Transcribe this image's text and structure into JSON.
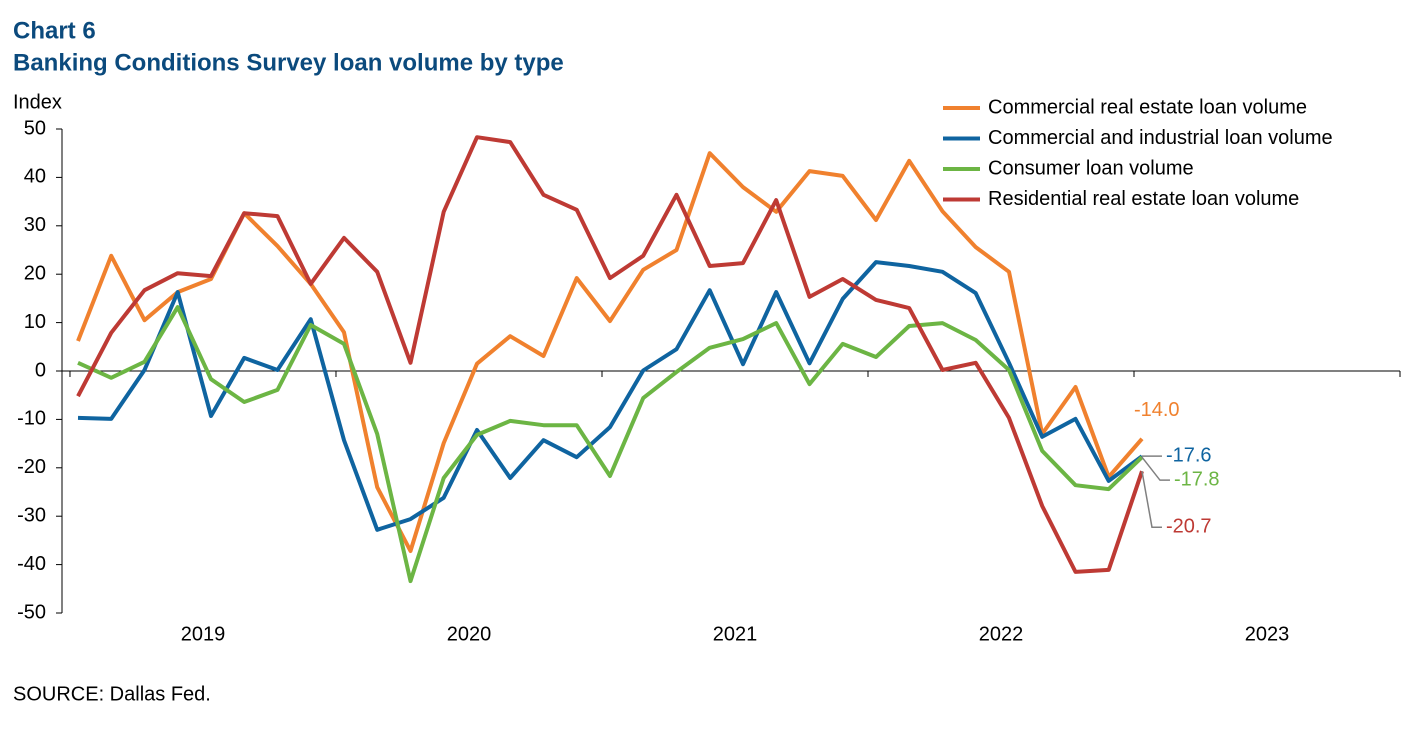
{
  "chart_data": {
    "type": "line",
    "title": "Chart 6",
    "subtitle": "Banking Conditions Survey loan volume by type",
    "y_label": "Index",
    "source": "SOURCE: Dallas Fed.",
    "x": [
      2019.03,
      2019.155,
      2019.28,
      2019.405,
      2019.53,
      2019.655,
      2019.78,
      2019.905,
      2020.03,
      2020.155,
      2020.28,
      2020.405,
      2020.53,
      2020.655,
      2020.78,
      2020.905,
      2021.03,
      2021.155,
      2021.28,
      2021.405,
      2021.53,
      2021.655,
      2021.78,
      2021.905,
      2022.03,
      2022.155,
      2022.28,
      2022.405,
      2022.53,
      2022.655,
      2022.78,
      2022.905,
      2023.03
    ],
    "xlim": [
      2018.97,
      2024.0
    ],
    "xticks": [
      2019,
      2020,
      2021,
      2022,
      2023,
      2024
    ],
    "x_labels": [
      "2019",
      "2020",
      "2021",
      "2022",
      "2023"
    ],
    "ylim": [
      -50,
      50
    ],
    "yticks": [
      -50,
      -40,
      -30,
      -20,
      -10,
      0,
      10,
      20,
      30,
      40,
      50
    ],
    "series": [
      {
        "name": "Commercial real estate loan volume",
        "color": "#f0812e",
        "last_label": "-14.0",
        "values": [
          6.2,
          23.8,
          10.5,
          16.3,
          19,
          32.6,
          25.8,
          18,
          8,
          -24,
          -37.2,
          -14.9,
          1.5,
          7.2,
          3.1,
          19.2,
          10.3,
          20.9,
          25,
          45,
          38,
          32.9,
          41.3,
          40.3,
          31.2,
          43.4,
          33,
          25.6,
          20.5,
          -13,
          -3.3,
          -21.9,
          -14.0
        ]
      },
      {
        "name": "Commercial and industrial loan volume",
        "color": "#0f64a0",
        "last_label": "-17.6",
        "values": [
          -9.7,
          -9.9,
          0.2,
          16.3,
          -9.3,
          2.7,
          0.2,
          10.7,
          -14.3,
          -32.8,
          -30.6,
          -26.2,
          -12.2,
          -22.1,
          -14.3,
          -17.8,
          -11.6,
          0.1,
          4.5,
          16.7,
          1.4,
          16.3,
          1.6,
          14.9,
          22.5,
          21.7,
          20.5,
          16.1,
          1.7,
          -13.6,
          -9.9,
          -22.7,
          -17.6
        ]
      },
      {
        "name": "Consumer loan volume",
        "color": "#6cb544",
        "last_label": "-17.8",
        "values": [
          1.7,
          -1.4,
          1.9,
          13.2,
          -1.7,
          -6.4,
          -3.9,
          9.5,
          5.6,
          -13,
          -43.4,
          -22.1,
          -13.2,
          -10.3,
          -11.2,
          -11.2,
          -21.7,
          -5.6,
          -0.2,
          4.8,
          6.6,
          9.9,
          -2.7,
          5.6,
          2.9,
          9.3,
          9.9,
          6.4,
          0.2,
          -16.5,
          -23.6,
          -24.4,
          -17.8
        ]
      },
      {
        "name": "Residential real estate loan volume",
        "color": "#be3a34",
        "last_label": "-20.7",
        "values": [
          -5.2,
          7.9,
          16.7,
          20.2,
          19.6,
          32.6,
          32,
          18,
          27.5,
          20.5,
          1.7,
          32.9,
          48.3,
          47.3,
          36.4,
          33.3,
          19.2,
          23.8,
          36.4,
          21.7,
          22.3,
          35.3,
          15.3,
          19,
          14.7,
          13,
          0.2,
          1.7,
          -9.7,
          -27.9,
          -41.5,
          -41.1,
          -20.7
        ]
      }
    ]
  }
}
